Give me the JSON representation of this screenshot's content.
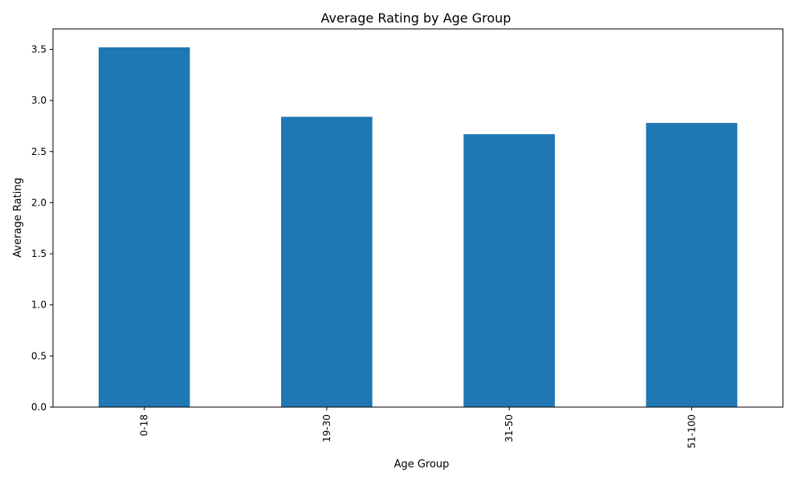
{
  "chart_data": {
    "type": "bar",
    "title": "Average Rating by Age Group",
    "xlabel": "Age Group",
    "ylabel": "Average Rating",
    "categories": [
      "0-18",
      "19-30",
      "31-50",
      "51-100"
    ],
    "values": [
      3.52,
      2.84,
      2.67,
      2.78
    ],
    "ylim": [
      0,
      3.7
    ],
    "yticks": [
      "0.0",
      "0.5",
      "1.0",
      "1.5",
      "2.0",
      "2.5",
      "3.0",
      "3.5"
    ],
    "grid": false,
    "legend": "none",
    "bar_color": "#1f77b4",
    "x_tick_rotation": "vertical"
  }
}
